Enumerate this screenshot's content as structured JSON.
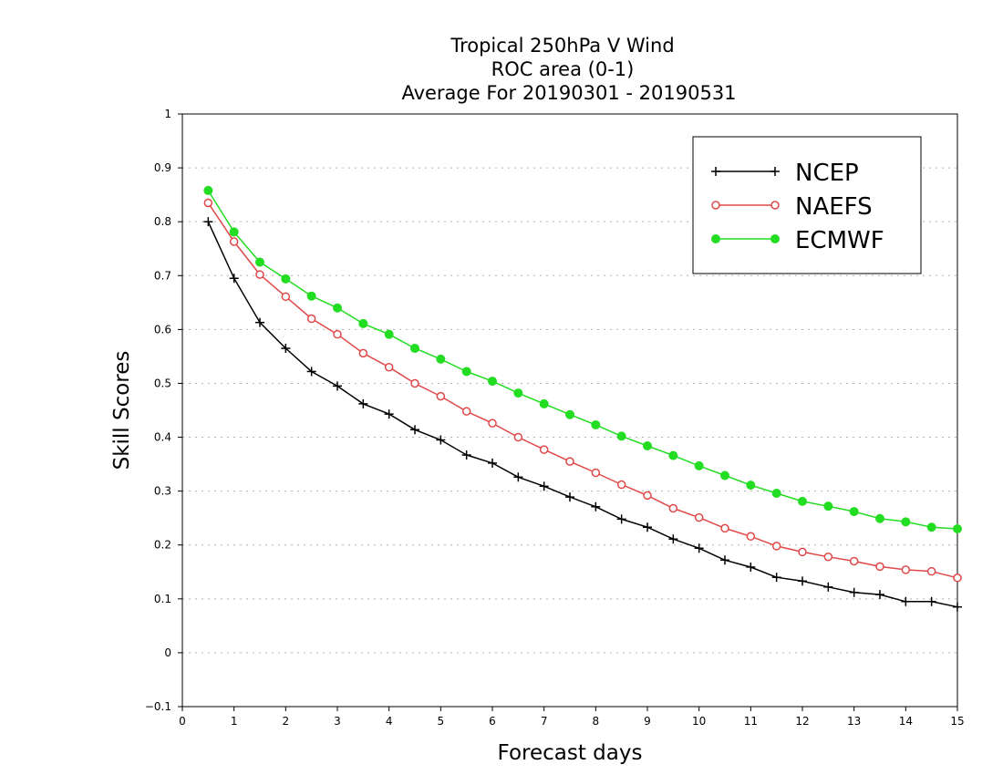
{
  "chart_data": {
    "type": "line",
    "title_lines": [
      "Tropical 250hPa V Wind",
      "ROC area (0-1)",
      "Average For 20190301 - 20190531"
    ],
    "xlabel": "Forecast days",
    "ylabel": "Skill Scores",
    "xlim": [
      0,
      15
    ],
    "ylim": [
      -0.1,
      1
    ],
    "x_ticks": [
      "0",
      "1",
      "2",
      "3",
      "4",
      "5",
      "6",
      "7",
      "8",
      "9",
      "10",
      "11",
      "12",
      "13",
      "14",
      "15"
    ],
    "y_ticks": [
      "-0.1",
      "0",
      "0.1",
      "0.2",
      "0.3",
      "0.4",
      "0.5",
      "0.6",
      "0.7",
      "0.8",
      "0.9",
      "1"
    ],
    "grid": true,
    "legend_position": "top-right",
    "x": [
      0.5,
      1,
      1.5,
      2,
      2.5,
      3,
      3.5,
      4,
      4.5,
      5,
      5.5,
      6,
      6.5,
      7,
      7.5,
      8,
      8.5,
      9,
      9.5,
      10,
      10.5,
      11,
      11.5,
      12,
      12.5,
      13,
      13.5,
      14,
      14.5,
      15
    ],
    "series": [
      {
        "name": "NCEP",
        "color": "#000000",
        "marker": "plus",
        "values": [
          0.8,
          0.695,
          0.613,
          0.565,
          0.522,
          0.495,
          0.462,
          0.443,
          0.414,
          0.395,
          0.367,
          0.352,
          0.326,
          0.309,
          0.289,
          0.271,
          0.248,
          0.233,
          0.211,
          0.194,
          0.172,
          0.159,
          0.14,
          0.133,
          0.122,
          0.112,
          0.108,
          0.095,
          0.095,
          0.085
        ]
      },
      {
        "name": "NAEFS",
        "color": "#e04848",
        "marker": "open-circle",
        "values": [
          0.835,
          0.763,
          0.702,
          0.661,
          0.62,
          0.591,
          0.556,
          0.53,
          0.5,
          0.476,
          0.448,
          0.426,
          0.4,
          0.377,
          0.355,
          0.334,
          0.312,
          0.292,
          0.268,
          0.251,
          0.231,
          0.216,
          0.198,
          0.187,
          0.178,
          0.17,
          0.16,
          0.154,
          0.151,
          0.139
        ]
      },
      {
        "name": "ECMWF",
        "color": "#22dd22",
        "marker": "filled-circle",
        "values": [
          0.858,
          0.781,
          0.725,
          0.694,
          0.662,
          0.64,
          0.611,
          0.591,
          0.565,
          0.545,
          0.522,
          0.504,
          0.482,
          0.462,
          0.442,
          0.423,
          0.402,
          0.384,
          0.366,
          0.347,
          0.329,
          0.311,
          0.296,
          0.281,
          0.272,
          0.262,
          0.249,
          0.243,
          0.233,
          0.23
        ]
      }
    ]
  }
}
